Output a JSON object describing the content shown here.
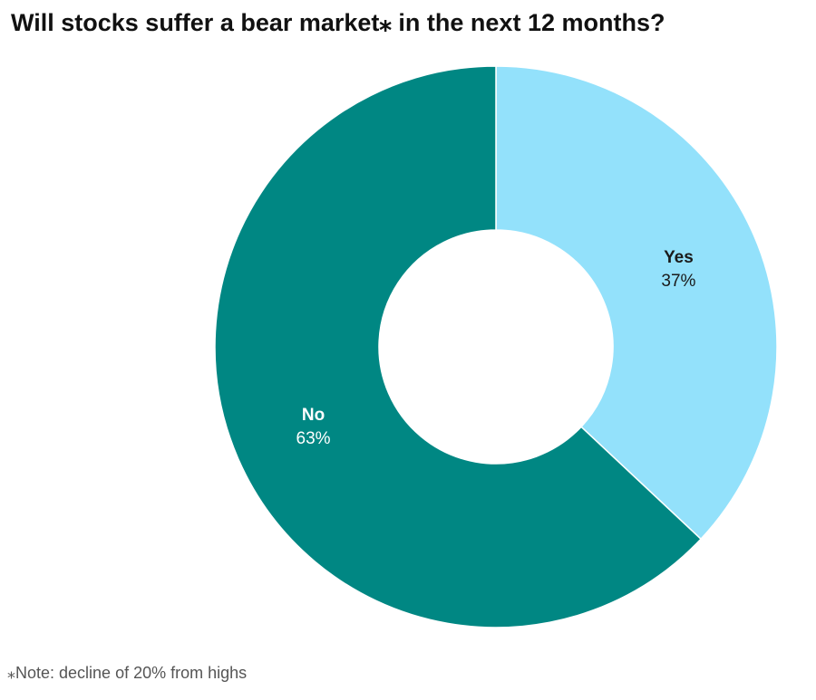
{
  "chart_data": {
    "type": "pie",
    "title": "Will stocks suffer a bear market⁎ in the next 12 months?",
    "donut": true,
    "start_angle_deg": 0,
    "direction": "clockwise",
    "slices": [
      {
        "label": "Yes",
        "value": 37,
        "value_label": "37%",
        "color": "#93e1fb",
        "label_color": "#1a1a1a"
      },
      {
        "label": "No",
        "value": 63,
        "value_label": "63%",
        "color": "#008783",
        "label_color": "#ffffff"
      }
    ],
    "note": "⁎Note: decline of 20% from highs"
  }
}
